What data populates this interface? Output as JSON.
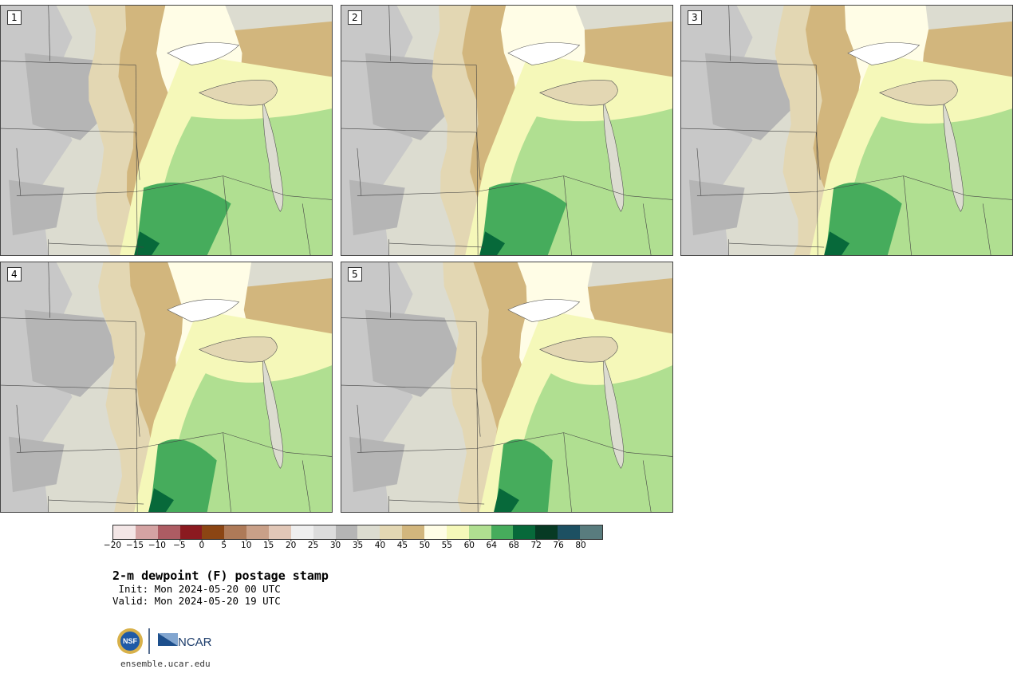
{
  "panels": [
    {
      "label": "1",
      "variant": 0
    },
    {
      "label": "2",
      "variant": 1
    },
    {
      "label": "3",
      "variant": 2
    },
    {
      "label": "4",
      "variant": 3
    },
    {
      "label": "5",
      "variant": 4
    }
  ],
  "colorbar": {
    "colors": [
      "#f3e6e6",
      "#d4a3a3",
      "#ad5c63",
      "#8b1a20",
      "#8b4513",
      "#ae7a58",
      "#c9a088",
      "#e1c7b7",
      "#efefef",
      "#dcdcdc",
      "#b5b5b5",
      "#dcdcd0",
      "#e3d7b3",
      "#d2b67d",
      "#fffde6",
      "#f5f8b9",
      "#b0df91",
      "#46ac5c",
      "#07693a",
      "#073a24",
      "#1d5062",
      "#597c7e"
    ],
    "ticks": [
      "−20",
      "−15",
      "−10",
      "−5",
      "0",
      "5",
      "10",
      "15",
      "20",
      "25",
      "30",
      "35",
      "40",
      "45",
      "50",
      "55",
      "60",
      "64",
      "68",
      "72",
      "76",
      "80"
    ]
  },
  "title": {
    "main": "2-m dewpoint (F) postage stamp",
    "init": " Init: Mon 2024-05-20 00 UTC",
    "valid": "Valid: Mon 2024-05-20 19 UTC"
  },
  "footer": {
    "nsf_logo_text": "NSF",
    "ncar_logo_text": "NCAR",
    "url": "ensemble.ucar.edu"
  }
}
